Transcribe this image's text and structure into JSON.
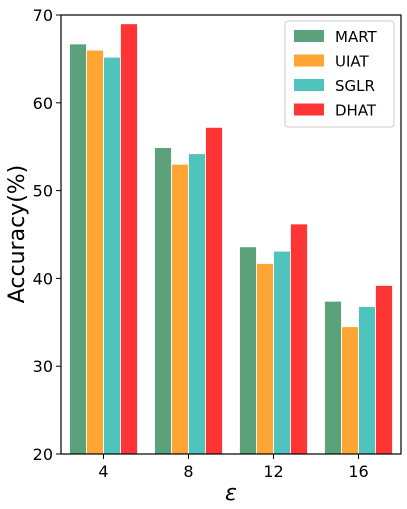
{
  "chart_data": {
    "type": "bar",
    "categories": [
      "4",
      "8",
      "12",
      "16"
    ],
    "series": [
      {
        "name": "MART",
        "color": "#5BA27A",
        "values": [
          66.7,
          54.9,
          43.6,
          37.4
        ]
      },
      {
        "name": "UIAT",
        "color": "#FFA534",
        "values": [
          66.0,
          53.0,
          41.7,
          34.5
        ]
      },
      {
        "name": "SGLR",
        "color": "#4FC4BC",
        "values": [
          65.2,
          54.2,
          43.1,
          36.8
        ]
      },
      {
        "name": "DHAT",
        "color": "#FF3434",
        "values": [
          69.0,
          57.2,
          46.2,
          39.2
        ]
      }
    ],
    "xlabel": "ε",
    "ylabel": "Accuracy(%)",
    "ylim": [
      20,
      70
    ],
    "yticks": [
      "20",
      "30",
      "40",
      "50",
      "60",
      "70"
    ],
    "legend": "top-right",
    "grid": false
  }
}
